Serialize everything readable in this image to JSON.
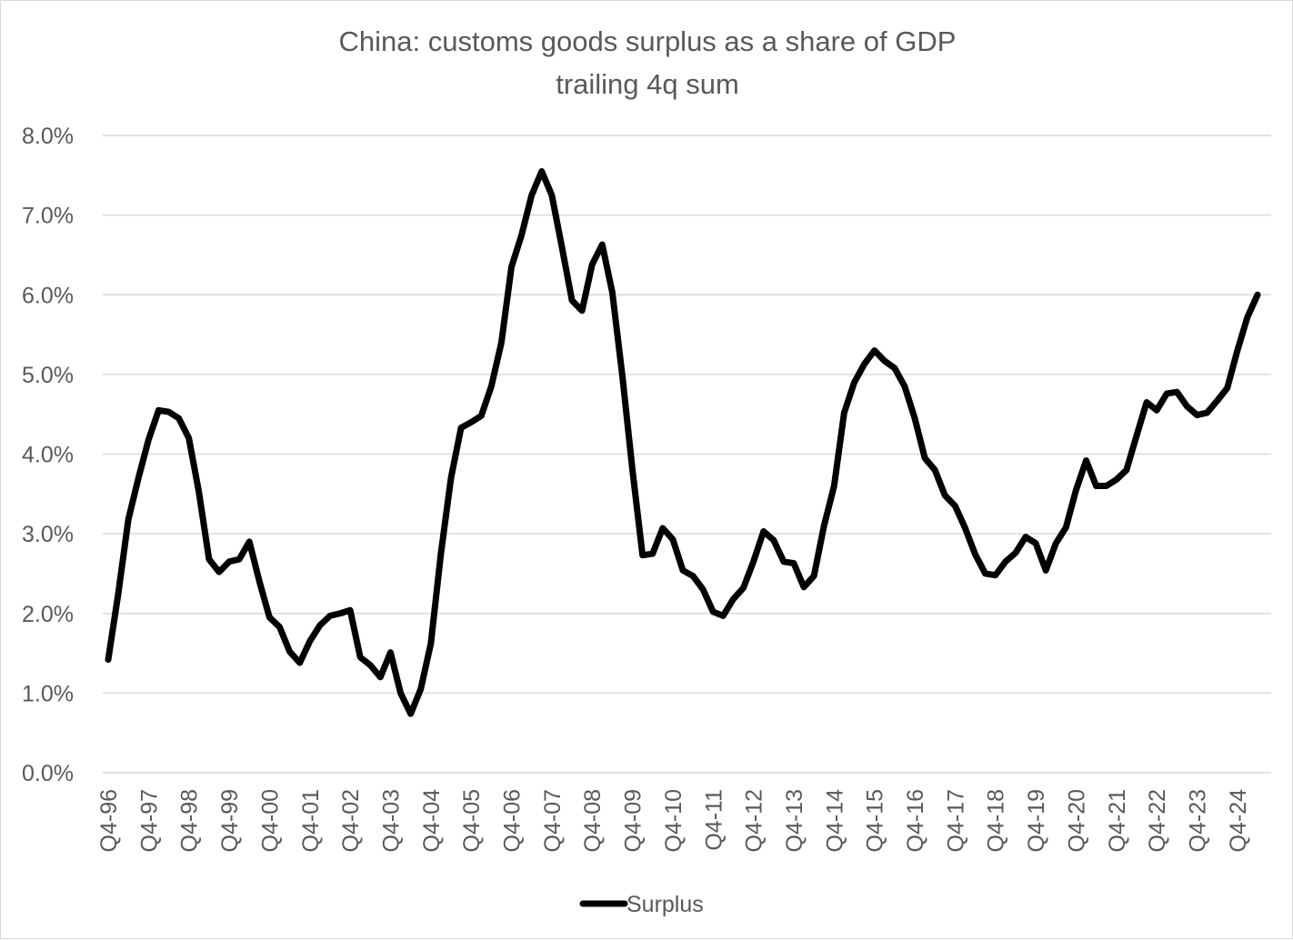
{
  "chart_data": {
    "type": "line",
    "title": "China: customs goods surplus as a share of GDP",
    "subtitle": "trailing 4q sum",
    "xlabel": "",
    "ylabel": "",
    "ylim": [
      0,
      0.08
    ],
    "y_ticks": [
      {
        "value": 0.0,
        "label": "0.0%"
      },
      {
        "value": 0.01,
        "label": "1.0%"
      },
      {
        "value": 0.02,
        "label": "2.0%"
      },
      {
        "value": 0.03,
        "label": "3.0%"
      },
      {
        "value": 0.04,
        "label": "4.0%"
      },
      {
        "value": 0.05,
        "label": "5.0%"
      },
      {
        "value": 0.06,
        "label": "6.0%"
      },
      {
        "value": 0.07,
        "label": "7.0%"
      },
      {
        "value": 0.08,
        "label": "8.0%"
      }
    ],
    "grid": "horizontal",
    "legend_position": "bottom",
    "line_color": "#000000",
    "x_tick_labels": [
      "Q4-96",
      "Q4-97",
      "Q4-98",
      "Q4-99",
      "Q4-00",
      "Q4-01",
      "Q4-02",
      "Q4-03",
      "Q4-04",
      "Q4-05",
      "Q4-06",
      "Q4-07",
      "Q4-08",
      "Q4-09",
      "Q4-10",
      "Q4-11",
      "Q4-12",
      "Q4-13",
      "Q4-14",
      "Q4-15",
      "Q4-16",
      "Q4-17",
      "Q4-18",
      "Q4-19",
      "Q4-20",
      "Q4-21",
      "Q4-22",
      "Q4-23",
      "Q4-24"
    ],
    "series": [
      {
        "name": "Surplus",
        "values": [
          1.42,
          2.25,
          3.18,
          3.7,
          4.18,
          4.55,
          4.53,
          4.45,
          4.2,
          3.52,
          2.68,
          2.52,
          2.65,
          2.68,
          2.9,
          2.4,
          1.95,
          1.83,
          1.52,
          1.38,
          1.65,
          1.85,
          1.97,
          2.0,
          2.04,
          1.45,
          1.35,
          1.2,
          1.51,
          1.0,
          0.74,
          1.05,
          1.62,
          2.75,
          3.7,
          4.33,
          4.4,
          4.48,
          4.85,
          5.4,
          6.35,
          6.75,
          7.25,
          7.55,
          7.25,
          6.6,
          5.93,
          5.8,
          6.38,
          6.63,
          6.03,
          4.98,
          3.8,
          2.73,
          2.75,
          3.07,
          2.93,
          2.54,
          2.47,
          2.3,
          2.02,
          1.97,
          2.18,
          2.32,
          2.65,
          3.03,
          2.92,
          2.65,
          2.63,
          2.33,
          2.47,
          3.1,
          3.6,
          4.52,
          4.9,
          5.13,
          5.3,
          5.17,
          5.08,
          4.85,
          4.45,
          3.95,
          3.8,
          3.48,
          3.35,
          3.07,
          2.74,
          2.5,
          2.48,
          2.65,
          2.76,
          2.96,
          2.88,
          2.54,
          2.88,
          3.08,
          3.55,
          3.92,
          3.6,
          3.6,
          3.68,
          3.8,
          4.23,
          4.65,
          4.55,
          4.76,
          4.78,
          4.6,
          4.49,
          4.52,
          4.67,
          4.83,
          5.3,
          5.72,
          6.0
        ]
      }
    ]
  }
}
